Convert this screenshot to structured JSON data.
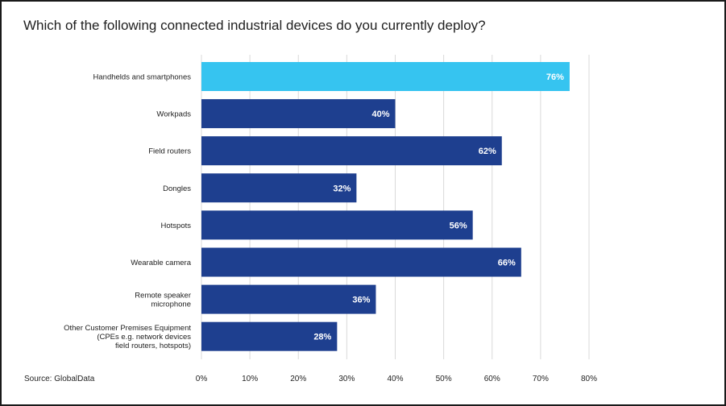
{
  "chart_data": {
    "type": "bar",
    "orientation": "horizontal",
    "title": "Which of the following connected industrial devices do you currently deploy?",
    "categories": [
      "Handhelds and smartphones",
      "Workpads",
      "Field routers",
      "Dongles",
      "Hotspots",
      "Wearable camera",
      "Remote speaker microphone",
      "Other Customer Premises Equipment (CPEs e.g. network devices field routers, hotspots)"
    ],
    "category_label_lines": [
      [
        "Handhelds and smartphones"
      ],
      [
        "Workpads"
      ],
      [
        "Field routers"
      ],
      [
        "Dongles"
      ],
      [
        "Hotspots"
      ],
      [
        "Wearable camera"
      ],
      [
        "Remote speaker",
        "microphone"
      ],
      [
        "Other Customer Premises Equipment",
        "(CPEs e.g. network devices",
        "field routers, hotspots)"
      ]
    ],
    "values": [
      76,
      40,
      62,
      32,
      56,
      66,
      36,
      28
    ],
    "value_labels": [
      "76%",
      "40%",
      "62%",
      "32%",
      "56%",
      "66%",
      "36%",
      "28%"
    ],
    "highlight_index": 0,
    "xlim": [
      0,
      80
    ],
    "x_ticks": [
      0,
      10,
      20,
      30,
      40,
      50,
      60,
      70,
      80
    ],
    "x_tick_labels": [
      "0%",
      "10%",
      "20%",
      "30%",
      "40%",
      "50%",
      "60%",
      "70%",
      "80%"
    ],
    "grid": true,
    "colors": {
      "highlight": "#36c4f0",
      "bar": "#1e3f8f",
      "grid": "#d9d9d9"
    }
  },
  "footer": {
    "source": "Source: GlobalData"
  }
}
